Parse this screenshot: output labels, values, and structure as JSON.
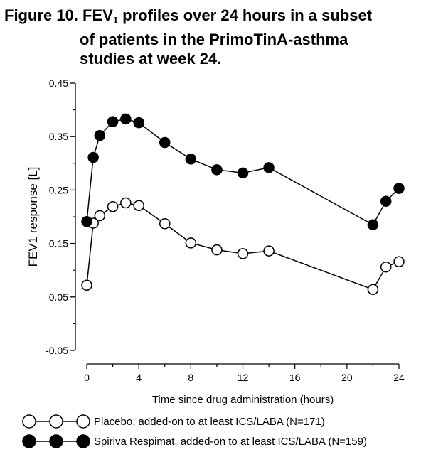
{
  "title": {
    "prefix": "Figure 10. FEV",
    "subscript": "1",
    "line1_rest": " profiles over 24 hours in a subset",
    "line2": "of patients in the PrimoTinA-asthma",
    "line3": "studies at week 24."
  },
  "chart_data": {
    "type": "line",
    "xlabel": "Time since drug administration (hours)",
    "ylabel": "FEV1 response [L]",
    "xlim": [
      -0.5,
      24.5
    ],
    "ylim": [
      -0.05,
      0.45
    ],
    "xticks": [
      0,
      4,
      8,
      12,
      16,
      20,
      24
    ],
    "yticks": [
      -0.05,
      0.05,
      0.15,
      0.25,
      0.35,
      0.45
    ],
    "ytick_labels": [
      "-0.05",
      "0.05",
      "0.15",
      "0.25",
      "0.35",
      "0.45"
    ],
    "grid": false,
    "legend_position": "bottom",
    "series": [
      {
        "name": "Placebo, added-on to at least ICS/LABA (N=171)",
        "marker": "open-circle",
        "color": "#000000",
        "x": [
          0,
          0.5,
          1,
          2,
          3,
          4,
          6,
          8,
          10,
          12,
          14,
          22,
          23,
          24
        ],
        "y": [
          0.072,
          0.188,
          0.202,
          0.219,
          0.226,
          0.221,
          0.187,
          0.151,
          0.138,
          0.131,
          0.136,
          0.064,
          0.106,
          0.116
        ]
      },
      {
        "name": "Spiriva Respimat, added-on to at least ICS/LABA (N=159)",
        "marker": "filled-circle",
        "color": "#000000",
        "x": [
          0,
          0.5,
          1,
          2,
          3,
          4,
          6,
          8,
          10,
          12,
          14,
          22,
          23,
          24
        ],
        "y": [
          0.191,
          0.311,
          0.352,
          0.378,
          0.383,
          0.376,
          0.339,
          0.308,
          0.288,
          0.282,
          0.292,
          0.185,
          0.229,
          0.253
        ]
      }
    ]
  }
}
